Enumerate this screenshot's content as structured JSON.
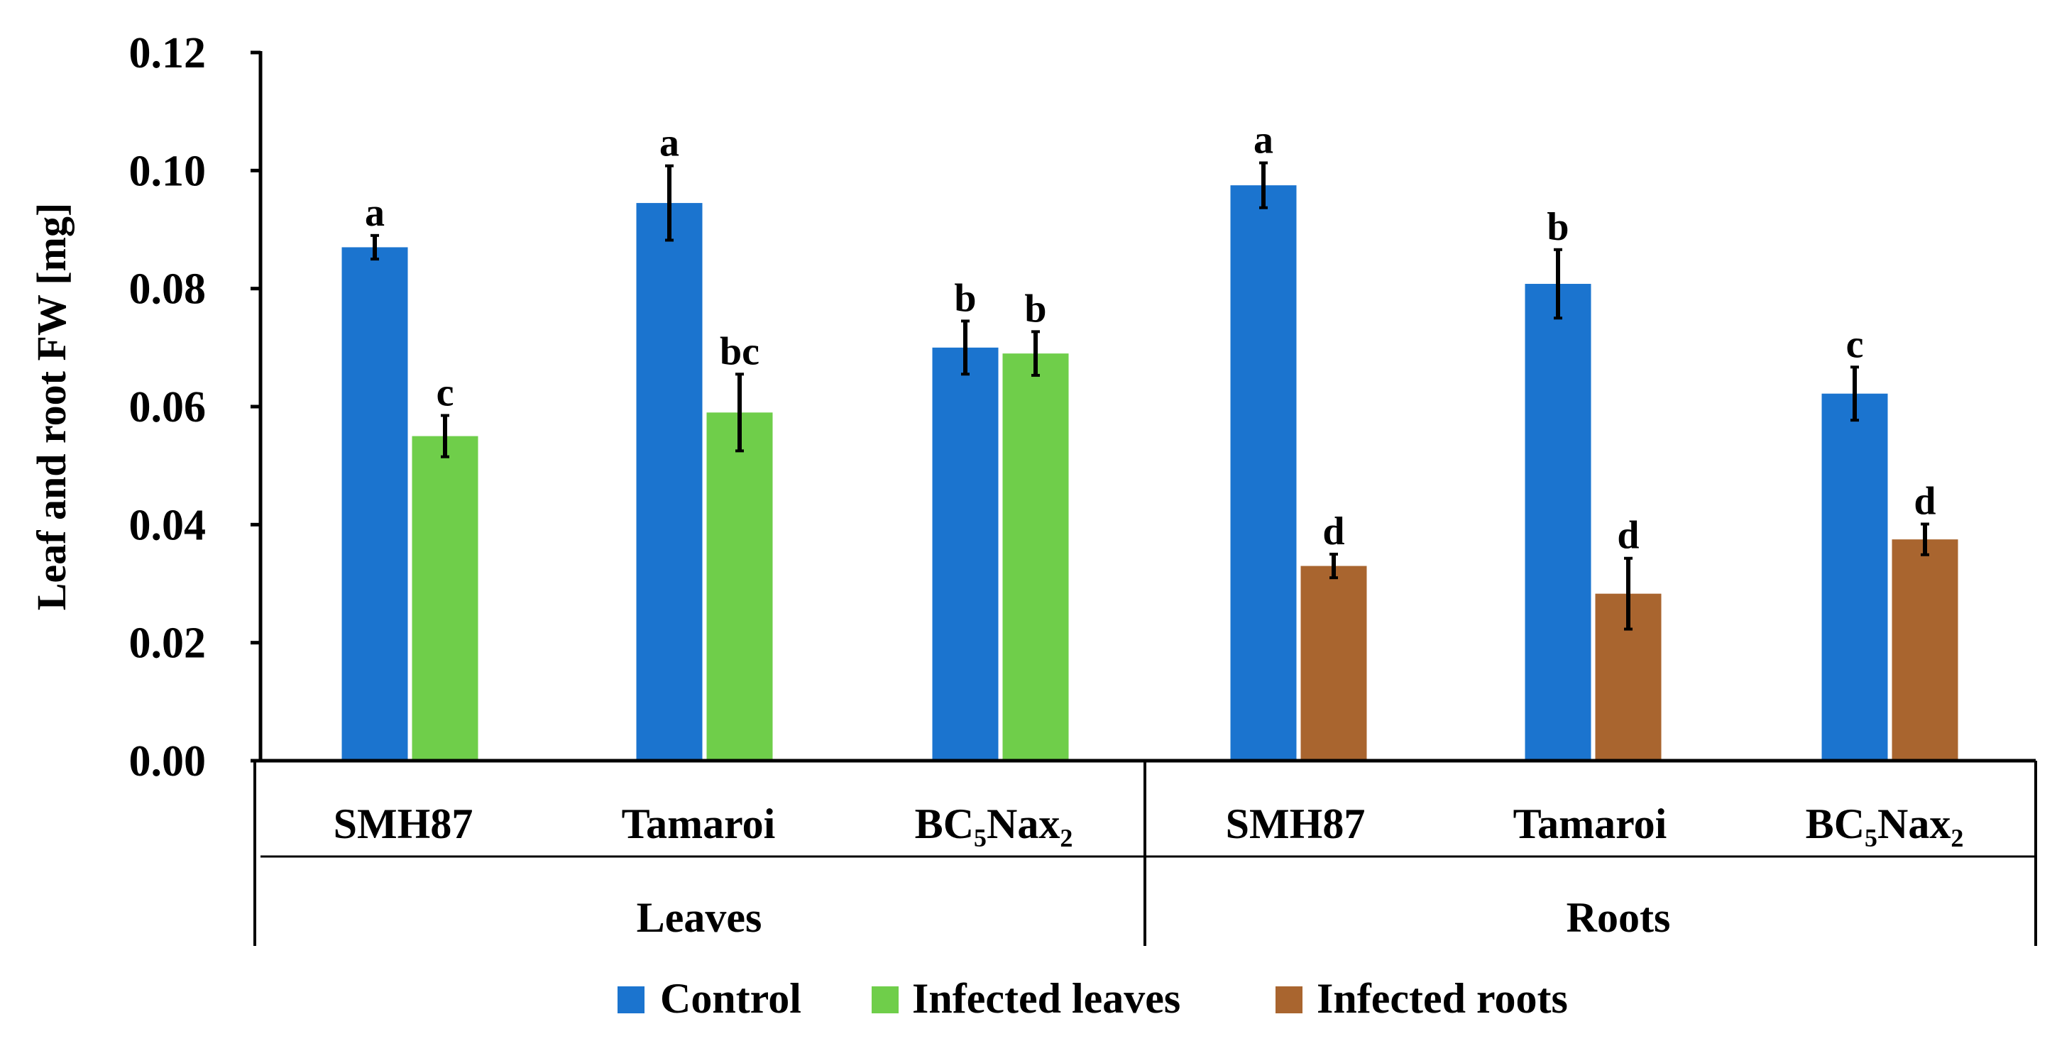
{
  "chart_data": {
    "type": "bar",
    "ylabel": "Leaf and root FW [mg]",
    "ylim": [
      0,
      0.12
    ],
    "yticks": [
      "0.00",
      "0.02",
      "0.04",
      "0.06",
      "0.08",
      "0.10",
      "0.12"
    ],
    "groups": [
      {
        "name": "Leaves",
        "categories": [
          {
            "label": "SMH87",
            "bars": [
              {
                "series": "Control",
                "value": 0.087,
                "error": 0.002,
                "letter": "a"
              },
              {
                "series": "Infected leaves",
                "value": 0.055,
                "error": 0.0035,
                "letter": "c"
              }
            ]
          },
          {
            "label": "Tamaroi",
            "bars": [
              {
                "series": "Control",
                "value": 0.0945,
                "error": 0.0063,
                "letter": "a"
              },
              {
                "series": "Infected leaves",
                "value": 0.059,
                "error": 0.0065,
                "letter": "bc"
              }
            ]
          },
          {
            "label": "BC₅Nax₂",
            "bars": [
              {
                "series": "Control",
                "value": 0.07,
                "error": 0.0045,
                "letter": "b"
              },
              {
                "series": "Infected leaves",
                "value": 0.069,
                "error": 0.0037,
                "letter": "b"
              }
            ]
          }
        ]
      },
      {
        "name": "Roots",
        "categories": [
          {
            "label": "SMH87",
            "bars": [
              {
                "series": "Control",
                "value": 0.0975,
                "error": 0.0038,
                "letter": "a"
              },
              {
                "series": "Infected roots",
                "value": 0.033,
                "error": 0.002,
                "letter": "d"
              }
            ]
          },
          {
            "label": "Tamaroi",
            "bars": [
              {
                "series": "Control",
                "value": 0.0808,
                "error": 0.0058,
                "letter": "b"
              },
              {
                "series": "Infected roots",
                "value": 0.0283,
                "error": 0.006,
                "letter": "d"
              }
            ]
          },
          {
            "label": "BC₅Nax₂",
            "bars": [
              {
                "series": "Control",
                "value": 0.0622,
                "error": 0.0045,
                "letter": "c"
              },
              {
                "series": "Infected roots",
                "value": 0.0375,
                "error": 0.0026,
                "letter": "d"
              }
            ]
          }
        ]
      }
    ],
    "legend": [
      {
        "name": "Control",
        "color": "#1B74CF"
      },
      {
        "name": "Infected leaves",
        "color": "#6FCE4A"
      },
      {
        "name": "Infected roots",
        "color": "#A9652F"
      }
    ],
    "legend_position": "bottom"
  }
}
